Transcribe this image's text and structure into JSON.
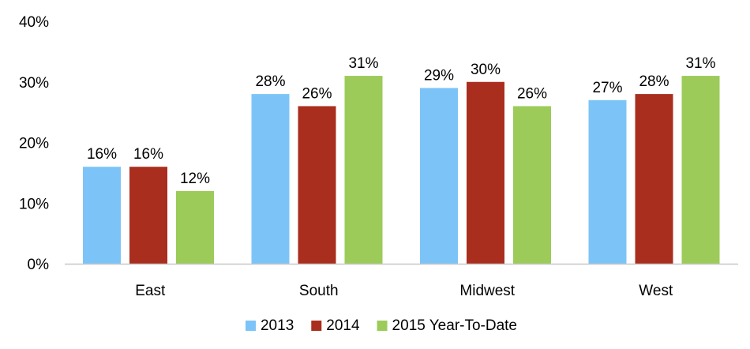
{
  "chart_data": {
    "type": "bar",
    "categories": [
      "East",
      "South",
      "Midwest",
      "West"
    ],
    "series": [
      {
        "name": "2013",
        "color": "#7CC4F8",
        "values": [
          16,
          28,
          29,
          27
        ],
        "labels": [
          "16%",
          "28%",
          "29%",
          "27%"
        ]
      },
      {
        "name": "2014",
        "color": "#A92E1E",
        "values": [
          16,
          26,
          30,
          28
        ],
        "labels": [
          "16%",
          "26%",
          "30%",
          "28%"
        ]
      },
      {
        "name": "2015 Year-To-Date",
        "color": "#9CCB5A",
        "values": [
          12,
          31,
          26,
          31
        ],
        "labels": [
          "12%",
          "31%",
          "26%",
          "31%"
        ]
      }
    ],
    "yticks": [
      0,
      10,
      20,
      30,
      40
    ],
    "ytick_labels": [
      "0%",
      "10%",
      "20%",
      "30%",
      "40%"
    ],
    "ylim": [
      0,
      40
    ],
    "grid": false,
    "legend_position": "bottom",
    "title": "",
    "xlabel": "",
    "ylabel": ""
  }
}
